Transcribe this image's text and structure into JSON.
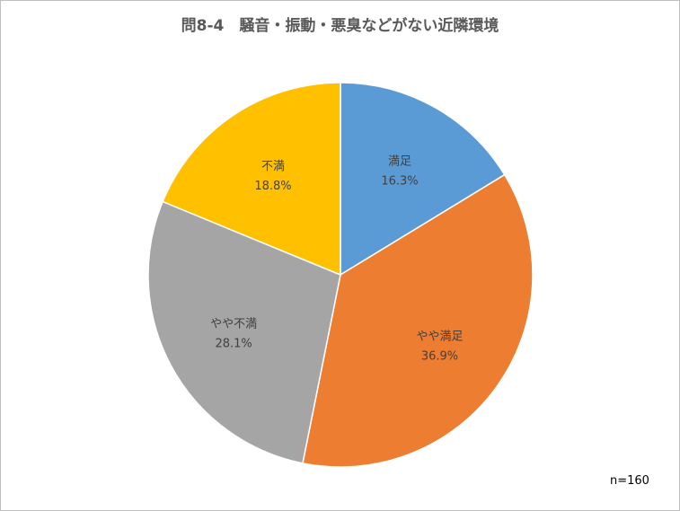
{
  "chart_data": {
    "type": "pie",
    "title": "問8-4　騒音・振動・悪臭などがない近隣環境",
    "note": "n=160",
    "categories": [
      "満足",
      "やや満足",
      "やや不満",
      "不満"
    ],
    "values": [
      16.3,
      36.9,
      28.1,
      18.8
    ],
    "value_labels": [
      "16.3%",
      "36.9%",
      "28.1%",
      "18.8%"
    ],
    "colors": [
      "#5B9BD5",
      "#ED7D31",
      "#A5A5A5",
      "#FFC000"
    ],
    "start": "12 o'clock",
    "direction": "clockwise",
    "legend": "none"
  }
}
